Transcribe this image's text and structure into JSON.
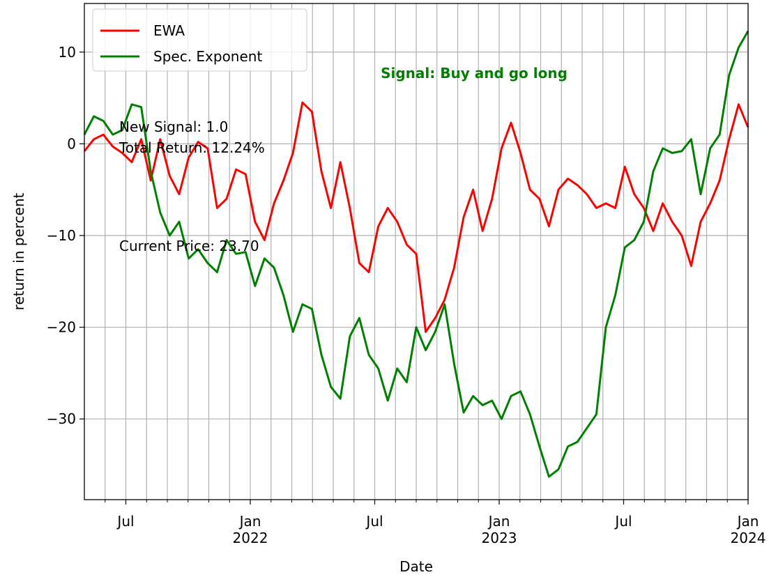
{
  "chart_data": {
    "type": "line",
    "xlabel": "Date",
    "ylabel": "return in percent",
    "xlim": [
      "2021-05",
      "2024-01"
    ],
    "ylim": [
      -38.8,
      15.3
    ],
    "yticks": [
      {
        "value": -30,
        "label": "−30"
      },
      {
        "value": -20,
        "label": "−20"
      },
      {
        "value": -10,
        "label": "−10"
      },
      0,
      10
    ],
    "xticks": [
      {
        "value": "2021-07",
        "label": "Jul"
      },
      {
        "value": "2022-01",
        "label": "Jan\n2022"
      },
      {
        "value": "2022-07",
        "label": "Jul"
      },
      {
        "value": "2023-01",
        "label": "Jan\n2023"
      },
      {
        "value": "2023-07",
        "label": "Jul"
      },
      {
        "value": "2024-01",
        "label": "Jan\n2024"
      }
    ],
    "xminorticks": [
      "2021-06",
      "2021-08",
      "2021-09",
      "2021-10",
      "2021-11",
      "2021-12",
      "2022-02",
      "2022-03",
      "2022-04",
      "2022-05",
      "2022-06",
      "2022-08",
      "2022-09",
      "2022-10",
      "2022-11",
      "2022-12",
      "2023-02",
      "2023-03",
      "2023-04",
      "2023-05",
      "2023-06",
      "2023-08",
      "2023-09",
      "2023-10",
      "2023-11",
      "2023-12"
    ],
    "grid": true,
    "legend": "upper left",
    "annotations": [
      {
        "text": "New Signal: 1.0"
      },
      {
        "text": "Total Return: 12.24%"
      },
      {
        "text": "Current Price: 23.70"
      },
      {
        "text": "Signal: Buy and go long",
        "color": "#008000"
      }
    ],
    "series": [
      {
        "name": "EWA",
        "color": "#ff0000",
        "values": [
          -0.8,
          0.5,
          1.0,
          -0.3,
          -1.0,
          -2.0,
          0.5,
          -4.0,
          0.5,
          -3.5,
          -5.5,
          -1.5,
          0.2,
          -0.5,
          -7.0,
          -6.0,
          -2.8,
          -3.3,
          -8.5,
          -10.5,
          -6.5,
          -4.0,
          -1.0,
          4.5,
          3.5,
          -3.0,
          -7.0,
          -2.0,
          -7.0,
          -13.0,
          -14.0,
          -9.0,
          -7.0,
          -8.5,
          -11.0,
          -12.0,
          -20.5,
          -19.0,
          -17.0,
          -13.5,
          -8.0,
          -5.0,
          -9.5,
          -6.0,
          -0.5,
          2.3,
          -1.0,
          -5.0,
          -6.0,
          -9.0,
          -5.0,
          -3.8,
          -4.5,
          -5.5,
          -7.0,
          -6.5,
          -7.0,
          -2.5,
          -5.5,
          -7.0,
          -9.5,
          -6.5,
          -8.5,
          -10.0,
          -13.3,
          -8.5,
          -6.5,
          -4.0,
          0.5,
          4.3,
          1.8
        ]
      },
      {
        "name": "Spec. Exponent",
        "color": "#008000",
        "values": [
          1.0,
          3.0,
          2.5,
          1.0,
          1.5,
          4.3,
          4.0,
          -3.0,
          -7.5,
          -10.0,
          -8.5,
          -12.5,
          -11.5,
          -13.0,
          -14.0,
          -10.5,
          -12.0,
          -11.8,
          -15.5,
          -12.5,
          -13.5,
          -16.5,
          -20.5,
          -17.5,
          -18.0,
          -23.0,
          -26.5,
          -27.8,
          -21.0,
          -19.0,
          -23.0,
          -24.5,
          -28.0,
          -24.5,
          -26.0,
          -20.0,
          -22.5,
          -20.5,
          -17.5,
          -24.0,
          -29.3,
          -27.5,
          -28.5,
          -28.0,
          -30.0,
          -27.5,
          -27.0,
          -29.5,
          -33.0,
          -36.3,
          -35.5,
          -33.0,
          -32.5,
          -31.0,
          -29.5,
          -20.0,
          -16.5,
          -11.3,
          -10.5,
          -8.5,
          -3.0,
          -0.5,
          -1.0,
          -0.8,
          0.5,
          -5.5,
          -0.5,
          1.0,
          7.5,
          10.5,
          12.3
        ]
      }
    ]
  }
}
